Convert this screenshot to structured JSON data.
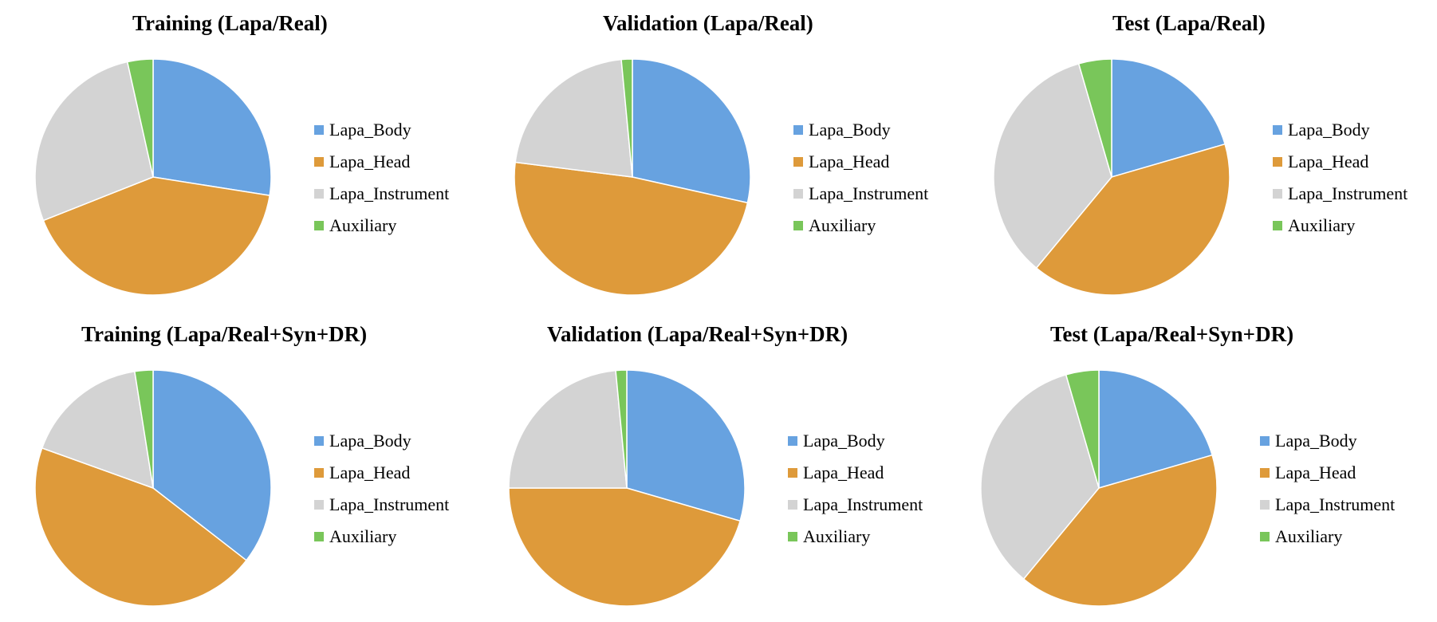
{
  "colors": {
    "Lapa_Body": "#67a2e0",
    "Lapa_Head": "#de9a3a",
    "Lapa_Instrument": "#d3d3d3",
    "Auxiliary": "#79c65a"
  },
  "chart_data": [
    {
      "type": "pie",
      "title": "Training (Lapa/Real)",
      "categories": [
        "Lapa_Body",
        "Lapa_Head",
        "Lapa_Instrument",
        "Auxiliary"
      ],
      "values": [
        27.5,
        41.5,
        27.5,
        3.5
      ],
      "legend": "right"
    },
    {
      "type": "pie",
      "title": "Validation (Lapa/Real)",
      "categories": [
        "Lapa_Body",
        "Lapa_Head",
        "Lapa_Instrument",
        "Auxiliary"
      ],
      "values": [
        28.5,
        48.5,
        21.5,
        1.5
      ],
      "legend": "right"
    },
    {
      "type": "pie",
      "title": "Test (Lapa/Real)",
      "categories": [
        "Lapa_Body",
        "Lapa_Head",
        "Lapa_Instrument",
        "Auxiliary"
      ],
      "values": [
        20.5,
        40.5,
        34.5,
        4.5
      ],
      "legend": "right"
    },
    {
      "type": "pie",
      "title": "Training (Lapa/Real+Syn+DR)",
      "categories": [
        "Lapa_Body",
        "Lapa_Head",
        "Lapa_Instrument",
        "Auxiliary"
      ],
      "values": [
        35.5,
        45.0,
        17.0,
        2.5
      ],
      "legend": "right"
    },
    {
      "type": "pie",
      "title": "Validation (Lapa/Real+Syn+DR)",
      "categories": [
        "Lapa_Body",
        "Lapa_Head",
        "Lapa_Instrument",
        "Auxiliary"
      ],
      "values": [
        29.5,
        45.5,
        23.5,
        1.5
      ],
      "legend": "right"
    },
    {
      "type": "pie",
      "title": "Test (Lapa/Real+Syn+DR)",
      "categories": [
        "Lapa_Body",
        "Lapa_Head",
        "Lapa_Instrument",
        "Auxiliary"
      ],
      "values": [
        20.5,
        40.5,
        34.5,
        4.5
      ],
      "legend": "right"
    }
  ]
}
